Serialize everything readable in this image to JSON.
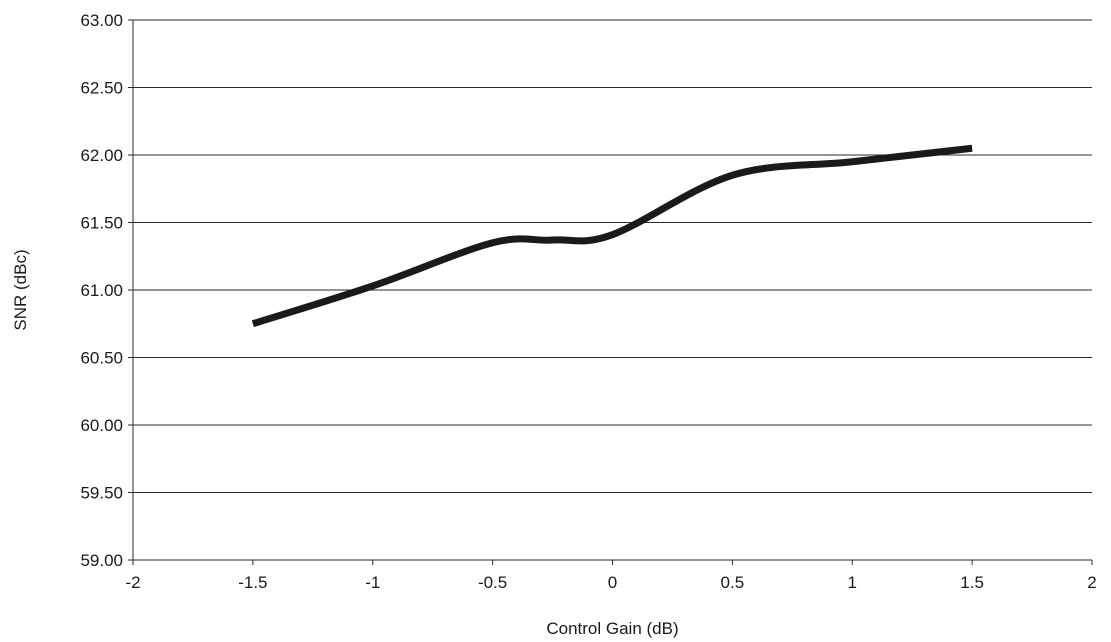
{
  "chart_data": {
    "type": "line",
    "title": "",
    "xlabel": "Control Gain (dB)",
    "ylabel": "SNR (dBc)",
    "xlim": [
      -2,
      2
    ],
    "ylim": [
      59.0,
      63.0
    ],
    "x_ticks": [
      "-2",
      "-1.5",
      "-1",
      "-0.5",
      "0",
      "0.5",
      "1",
      "1.5",
      "2"
    ],
    "x_tick_values": [
      -2,
      -1.5,
      -1,
      -0.5,
      0,
      0.5,
      1,
      1.5,
      2
    ],
    "y_ticks": [
      "59.00",
      "59.50",
      "60.00",
      "60.50",
      "61.00",
      "61.50",
      "62.00",
      "62.50",
      "63.00"
    ],
    "y_tick_values": [
      59.0,
      59.5,
      60.0,
      60.5,
      61.0,
      61.5,
      62.0,
      62.5,
      63.0
    ],
    "grid": {
      "horizontal": true,
      "vertical": false
    },
    "legend": "none",
    "series": [
      {
        "color": "#1a1a1a",
        "x": [
          -1.5,
          -1.0,
          -0.5,
          -0.25,
          0.0,
          0.5,
          1.0,
          1.5
        ],
        "y": [
          60.75,
          61.03,
          61.35,
          61.37,
          61.41,
          61.85,
          61.95,
          62.05
        ]
      }
    ]
  }
}
